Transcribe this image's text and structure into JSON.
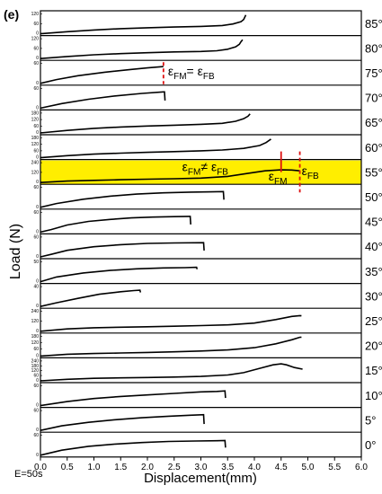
{
  "panel_label": "(e)",
  "chart_data": {
    "type": "line",
    "title": "",
    "xlabel": "Displacement(mm)",
    "ylabel": "Load (N)",
    "xlim": [
      0.0,
      6.0
    ],
    "x_ticks": [
      "0.0",
      "0.5",
      "1.0",
      "1.5",
      "2.0",
      "2.5",
      "3.0",
      "3.5",
      "4.0",
      "4.5",
      "5.0",
      "5.5",
      "6.0"
    ],
    "footnote": "E=50s",
    "highlight_color": "#ffee00",
    "marker_color": "#dd1111",
    "panels": [
      {
        "angle": "85°",
        "yticks": [
          "120",
          "60",
          "0"
        ],
        "ymax": 135,
        "curve": [
          [
            0,
            0
          ],
          [
            0.5,
            14
          ],
          [
            1.0,
            25
          ],
          [
            1.5,
            34
          ],
          [
            2.0,
            40
          ],
          [
            2.5,
            45
          ],
          [
            3.0,
            49
          ],
          [
            3.4,
            55
          ],
          [
            3.6,
            65
          ],
          [
            3.75,
            80
          ],
          [
            3.8,
            95
          ],
          [
            3.82,
            110
          ],
          [
            3.84,
            125
          ]
        ]
      },
      {
        "angle": "80°",
        "yticks": [
          "120",
          "60",
          "0"
        ],
        "ymax": 135,
        "curve": [
          [
            0,
            0
          ],
          [
            0.5,
            14
          ],
          [
            1.0,
            25
          ],
          [
            1.5,
            33
          ],
          [
            2.0,
            39
          ],
          [
            2.5,
            44
          ],
          [
            3.0,
            47
          ],
          [
            3.3,
            52
          ],
          [
            3.5,
            62
          ],
          [
            3.65,
            78
          ],
          [
            3.72,
            95
          ],
          [
            3.75,
            112
          ],
          [
            3.78,
            125
          ]
        ]
      },
      {
        "angle": "75°",
        "yticks": [
          "60",
          "0"
        ],
        "ymax": 80,
        "curve": [
          [
            0,
            0
          ],
          [
            0.3,
            15
          ],
          [
            0.7,
            30
          ],
          [
            1.2,
            44
          ],
          [
            1.7,
            55
          ],
          [
            2.0,
            61
          ],
          [
            2.28,
            66
          ],
          [
            2.3,
            66
          ]
        ]
      },
      {
        "angle": "70°",
        "yticks": [
          "60",
          "0"
        ],
        "ymax": 80,
        "curve": [
          [
            0,
            0
          ],
          [
            0.4,
            18
          ],
          [
            0.9,
            35
          ],
          [
            1.4,
            48
          ],
          [
            1.9,
            58
          ],
          [
            2.3,
            64
          ],
          [
            2.32,
            64
          ],
          [
            2.33,
            30
          ]
        ]
      },
      {
        "angle": "65°",
        "yticks": [
          "180",
          "120",
          "60",
          "0"
        ],
        "ymax": 200,
        "curve": [
          [
            0,
            0
          ],
          [
            0.5,
            25
          ],
          [
            1.0,
            45
          ],
          [
            1.5,
            58
          ],
          [
            2.0,
            68
          ],
          [
            2.5,
            76
          ],
          [
            3.0,
            85
          ],
          [
            3.4,
            95
          ],
          [
            3.65,
            115
          ],
          [
            3.8,
            140
          ],
          [
            3.88,
            165
          ],
          [
            3.92,
            188
          ]
        ]
      },
      {
        "angle": "60°",
        "yticks": [
          "180",
          "120",
          "60",
          "0"
        ],
        "ymax": 200,
        "curve": [
          [
            0,
            0
          ],
          [
            0.5,
            20
          ],
          [
            1.0,
            35
          ],
          [
            1.5,
            45
          ],
          [
            2.0,
            53
          ],
          [
            2.5,
            60
          ],
          [
            3.0,
            68
          ],
          [
            3.4,
            76
          ],
          [
            3.8,
            92
          ],
          [
            4.1,
            120
          ],
          [
            4.22,
            150
          ],
          [
            4.3,
            180
          ],
          [
            4.31,
            185
          ]
        ]
      },
      {
        "angle": "55°",
        "yticks": [
          "240",
          "120",
          "0"
        ],
        "ymax": 260,
        "curve": [
          [
            0,
            0
          ],
          [
            0.5,
            18
          ],
          [
            1.0,
            28
          ],
          [
            1.5,
            36
          ],
          [
            2.0,
            42
          ],
          [
            2.5,
            48
          ],
          [
            3.0,
            56
          ],
          [
            3.5,
            78
          ],
          [
            3.9,
            120
          ],
          [
            4.2,
            150
          ],
          [
            4.5,
            162
          ],
          [
            4.7,
            160
          ],
          [
            4.85,
            150
          ]
        ]
      },
      {
        "angle": "50°",
        "yticks": [
          "60",
          "0"
        ],
        "ymax": 80,
        "curve": [
          [
            0,
            0
          ],
          [
            0.3,
            15
          ],
          [
            0.8,
            32
          ],
          [
            1.3,
            44
          ],
          [
            1.8,
            52
          ],
          [
            2.3,
            57
          ],
          [
            2.8,
            60
          ],
          [
            3.2,
            61
          ],
          [
            3.42,
            62
          ],
          [
            3.43,
            30
          ]
        ]
      },
      {
        "angle": "45°",
        "yticks": [
          "60",
          "0"
        ],
        "ymax": 80,
        "curve": [
          [
            0,
            0
          ],
          [
            0.2,
            10
          ],
          [
            0.5,
            28
          ],
          [
            0.9,
            42
          ],
          [
            1.3,
            50
          ],
          [
            1.7,
            56
          ],
          [
            2.1,
            59
          ],
          [
            2.5,
            61
          ],
          [
            2.78,
            62
          ],
          [
            2.8,
            62
          ],
          [
            2.81,
            30
          ]
        ]
      },
      {
        "angle": "40°",
        "yticks": [
          "60",
          "0"
        ],
        "ymax": 80,
        "curve": [
          [
            0,
            0
          ],
          [
            0.2,
            10
          ],
          [
            0.5,
            26
          ],
          [
            1.0,
            40
          ],
          [
            1.5,
            48
          ],
          [
            2.0,
            53
          ],
          [
            2.5,
            55
          ],
          [
            3.05,
            56
          ],
          [
            3.06,
            25
          ]
        ]
      },
      {
        "angle": "35°",
        "yticks": [
          "50",
          "0"
        ],
        "ymax": 65,
        "curve": [
          [
            0,
            0
          ],
          [
            0.3,
            15
          ],
          [
            0.8,
            28
          ],
          [
            1.3,
            36
          ],
          [
            1.8,
            41
          ],
          [
            2.3,
            44
          ],
          [
            2.7,
            45
          ],
          [
            2.92,
            46
          ],
          [
            2.93,
            40
          ]
        ]
      },
      {
        "angle": "30°",
        "yticks": [
          "40",
          "0"
        ],
        "ymax": 55,
        "curve": [
          [
            0,
            0
          ],
          [
            0.3,
            10
          ],
          [
            0.7,
            22
          ],
          [
            1.1,
            33
          ],
          [
            1.5,
            40
          ],
          [
            1.75,
            43
          ],
          [
            1.86,
            44
          ],
          [
            1.87,
            38
          ]
        ]
      },
      {
        "angle": "25°",
        "yticks": [
          "240",
          "120",
          "0"
        ],
        "ymax": 260,
        "curve": [
          [
            0,
            0
          ],
          [
            0.5,
            30
          ],
          [
            1.0,
            45
          ],
          [
            1.5,
            52
          ],
          [
            2.0,
            58
          ],
          [
            2.5,
            65
          ],
          [
            3.0,
            72
          ],
          [
            3.5,
            82
          ],
          [
            4.0,
            105
          ],
          [
            4.4,
            150
          ],
          [
            4.7,
            190
          ],
          [
            4.85,
            200
          ],
          [
            4.88,
            198
          ]
        ]
      },
      {
        "angle": "20°",
        "yticks": [
          "180",
          "120",
          "60",
          "0"
        ],
        "ymax": 200,
        "curve": [
          [
            0,
            0
          ],
          [
            0.5,
            18
          ],
          [
            1.0,
            25
          ],
          [
            1.5,
            30
          ],
          [
            2.0,
            35
          ],
          [
            2.5,
            42
          ],
          [
            3.0,
            50
          ],
          [
            3.5,
            60
          ],
          [
            4.0,
            82
          ],
          [
            4.4,
            120
          ],
          [
            4.7,
            160
          ],
          [
            4.85,
            185
          ],
          [
            4.88,
            186
          ]
        ]
      },
      {
        "angle": "15°",
        "yticks": [
          "240",
          "180",
          "120",
          "60",
          "0"
        ],
        "ymax": 260,
        "curve": [
          [
            0,
            0
          ],
          [
            0.5,
            20
          ],
          [
            1.0,
            32
          ],
          [
            1.5,
            38
          ],
          [
            2.0,
            42
          ],
          [
            2.5,
            48
          ],
          [
            3.0,
            56
          ],
          [
            3.5,
            75
          ],
          [
            3.8,
            105
          ],
          [
            4.1,
            160
          ],
          [
            4.35,
            205
          ],
          [
            4.5,
            218
          ],
          [
            4.6,
            205
          ],
          [
            4.75,
            170
          ],
          [
            4.9,
            150
          ]
        ]
      },
      {
        "angle": "10°",
        "yticks": [
          "60",
          "0"
        ],
        "ymax": 80,
        "curve": [
          [
            0,
            0
          ],
          [
            0.5,
            16
          ],
          [
            1.0,
            28
          ],
          [
            1.5,
            36
          ],
          [
            2.0,
            42
          ],
          [
            2.5,
            48
          ],
          [
            3.0,
            54
          ],
          [
            3.3,
            56
          ],
          [
            3.45,
            58
          ],
          [
            3.46,
            30
          ]
        ]
      },
      {
        "angle": "5°",
        "yticks": [
          "60",
          "0"
        ],
        "ymax": 80,
        "curve": [
          [
            0,
            0
          ],
          [
            0.4,
            18
          ],
          [
            0.9,
            32
          ],
          [
            1.4,
            42
          ],
          [
            1.9,
            50
          ],
          [
            2.4,
            56
          ],
          [
            2.8,
            60
          ],
          [
            3.05,
            62
          ],
          [
            3.06,
            25
          ]
        ]
      },
      {
        "angle": "0°",
        "yticks": [
          "60",
          "0"
        ],
        "ymax": 80,
        "curve": [
          [
            0,
            0
          ],
          [
            0.4,
            20
          ],
          [
            0.9,
            35
          ],
          [
            1.4,
            44
          ],
          [
            1.9,
            50
          ],
          [
            2.4,
            54
          ],
          [
            2.9,
            56
          ],
          [
            3.3,
            57
          ],
          [
            3.45,
            58
          ],
          [
            3.46,
            30
          ]
        ]
      }
    ],
    "annotations": [
      {
        "panel": 2,
        "x": 2.3,
        "label": "εFM= εFB",
        "main": "ε",
        "sub1": "FM",
        "mid": "= ε",
        "sub2": "FB"
      },
      {
        "panel": 6,
        "x_fm": 4.5,
        "x_fb": 4.85,
        "left_main": "ε",
        "left_sub1": "FM",
        "left_mid": "≠ ε",
        "left_sub2": "FB",
        "fm_main": "ε",
        "fm_sub": "FM",
        "fb_main": "ε",
        "fb_sub": "FB"
      }
    ]
  }
}
